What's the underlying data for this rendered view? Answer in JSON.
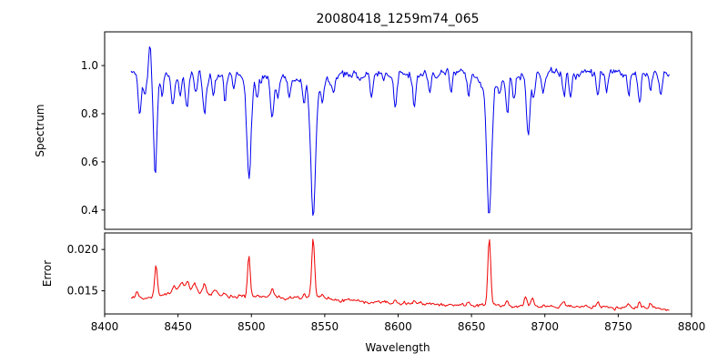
{
  "figure": {
    "title": "20080418_1259m74_065",
    "background": "#ffffff"
  },
  "chart_data": {
    "type": "line",
    "title": "20080418_1259m74_065",
    "xlabel": "Wavelength",
    "x_range": [
      8400,
      8800
    ],
    "x_ticks": [
      8400,
      8450,
      8500,
      8550,
      8600,
      8650,
      8700,
      8750,
      8800
    ],
    "data_x_start": 8418,
    "data_x_end": 8785,
    "step": 0.7,
    "noise_seed": 42,
    "grid": false,
    "legend": false,
    "panels": [
      {
        "name": "spectrum",
        "ylabel": "Spectrum",
        "color": "#0000ee",
        "line_width": 1,
        "y_ticks": [
          0.4,
          0.6,
          0.8,
          1.0
        ],
        "y_tick_labels": [
          "0.4",
          "0.6",
          "0.8",
          "1.0"
        ],
        "ylim": [
          0.32,
          1.14
        ],
        "noise_sigma": 0.011,
        "continuum_anchors": [
          [
            8418,
            0.97
          ],
          [
            8450,
            0.963
          ],
          [
            8490,
            0.97
          ],
          [
            8530,
            0.96
          ],
          [
            8570,
            0.963
          ],
          [
            8610,
            0.965
          ],
          [
            8650,
            0.975
          ],
          [
            8700,
            0.97
          ],
          [
            8750,
            0.975
          ],
          [
            8785,
            0.965
          ]
        ],
        "emission_spikes": [
          {
            "c": 8431.0,
            "h": 0.115,
            "w": 0.9
          }
        ],
        "absorption_lines": [
          {
            "c": 8424.0,
            "d": 0.15,
            "w": 1.1
          },
          {
            "c": 8427.5,
            "d": 0.08,
            "w": 0.9
          },
          {
            "c": 8434.5,
            "d": 0.42,
            "w": 1.2
          },
          {
            "c": 8439.0,
            "d": 0.1,
            "w": 0.9
          },
          {
            "c": 8446.5,
            "d": 0.13,
            "w": 1.1
          },
          {
            "c": 8451.5,
            "d": 0.08,
            "w": 0.9
          },
          {
            "c": 8456.0,
            "d": 0.12,
            "w": 1.1
          },
          {
            "c": 8462.0,
            "d": 0.09,
            "w": 0.9
          },
          {
            "c": 8468.0,
            "d": 0.16,
            "w": 1.3
          },
          {
            "c": 8474.0,
            "d": 0.08,
            "w": 0.9
          },
          {
            "c": 8482.0,
            "d": 0.1,
            "w": 0.9
          },
          {
            "c": 8488.0,
            "d": 0.07,
            "w": 0.9
          },
          {
            "c": 8498.3,
            "d": 0.38,
            "w": 1.4,
            "wd": 0.05,
            "ww": 5
          },
          {
            "c": 8504.0,
            "d": 0.07,
            "w": 0.9
          },
          {
            "c": 8514.2,
            "d": 0.17,
            "w": 1.2
          },
          {
            "c": 8518.0,
            "d": 0.09,
            "w": 0.9
          },
          {
            "c": 8526.0,
            "d": 0.08,
            "w": 0.9
          },
          {
            "c": 8536.0,
            "d": 0.09,
            "w": 0.9
          },
          {
            "c": 8542.1,
            "d": 0.5,
            "w": 1.6,
            "wd": 0.08,
            "ww": 6
          },
          {
            "c": 8548.5,
            "d": 0.08,
            "w": 0.9
          },
          {
            "c": 8556.0,
            "d": 0.06,
            "w": 0.9
          },
          {
            "c": 8582.0,
            "d": 0.09,
            "w": 1.0
          },
          {
            "c": 8598.0,
            "d": 0.12,
            "w": 1.1
          },
          {
            "c": 8611.0,
            "d": 0.13,
            "w": 1.1
          },
          {
            "c": 8621.5,
            "d": 0.09,
            "w": 1.0
          },
          {
            "c": 8636.0,
            "d": 0.06,
            "w": 0.9
          },
          {
            "c": 8648.0,
            "d": 0.09,
            "w": 0.9
          },
          {
            "c": 8662.1,
            "d": 0.52,
            "w": 1.6,
            "wd": 0.08,
            "ww": 6
          },
          {
            "c": 8669.0,
            "d": 0.09,
            "w": 0.9
          },
          {
            "c": 8674.5,
            "d": 0.16,
            "w": 1.0
          },
          {
            "c": 8679.0,
            "d": 0.12,
            "w": 0.9
          },
          {
            "c": 8688.6,
            "d": 0.25,
            "w": 1.2
          },
          {
            "c": 8692.5,
            "d": 0.1,
            "w": 0.9
          },
          {
            "c": 8699.0,
            "d": 0.07,
            "w": 0.9
          },
          {
            "c": 8713.0,
            "d": 0.1,
            "w": 0.9
          },
          {
            "c": 8717.5,
            "d": 0.08,
            "w": 0.9
          },
          {
            "c": 8736.0,
            "d": 0.11,
            "w": 1.0
          },
          {
            "c": 8742.0,
            "d": 0.07,
            "w": 0.9
          },
          {
            "c": 8757.0,
            "d": 0.09,
            "w": 0.9
          },
          {
            "c": 8764.5,
            "d": 0.13,
            "w": 1.0
          },
          {
            "c": 8772.0,
            "d": 0.09,
            "w": 0.9
          },
          {
            "c": 8779.0,
            "d": 0.07,
            "w": 0.9
          }
        ]
      },
      {
        "name": "error",
        "ylabel": "Error",
        "color": "#ee0000",
        "line_width": 1,
        "y_ticks": [
          0.015,
          0.02
        ],
        "y_tick_labels": [
          "0.015",
          "0.020"
        ],
        "ylim": [
          0.0122,
          0.022
        ],
        "noise_sigma": 0.00012,
        "baseline_anchors": [
          [
            8418,
            0.0141
          ],
          [
            8435,
            0.0143
          ],
          [
            8448,
            0.0148
          ],
          [
            8455,
            0.015
          ],
          [
            8463,
            0.0149
          ],
          [
            8470,
            0.0147
          ],
          [
            8480,
            0.0144
          ],
          [
            8495,
            0.0143
          ],
          [
            8510,
            0.0143
          ],
          [
            8530,
            0.0142
          ],
          [
            8545,
            0.0141
          ],
          [
            8560,
            0.0139
          ],
          [
            8580,
            0.0137
          ],
          [
            8600,
            0.0135
          ],
          [
            8620,
            0.0134
          ],
          [
            8645,
            0.0133
          ],
          [
            8665,
            0.0132
          ],
          [
            8690,
            0.0131
          ],
          [
            8715,
            0.0131
          ],
          [
            8740,
            0.013
          ],
          [
            8760,
            0.013
          ],
          [
            8775,
            0.0129
          ],
          [
            8785,
            0.0127
          ]
        ],
        "spikes": [
          {
            "c": 8422.0,
            "h": 0.0007,
            "w": 0.8
          },
          {
            "c": 8435.0,
            "h": 0.0037,
            "w": 0.9
          },
          {
            "c": 8447.0,
            "h": 0.0008,
            "w": 0.9
          },
          {
            "c": 8452.0,
            "h": 0.0009,
            "w": 2.0
          },
          {
            "c": 8456.5,
            "h": 0.001,
            "w": 1.2
          },
          {
            "c": 8461.0,
            "h": 0.0008,
            "w": 1.5
          },
          {
            "c": 8468.0,
            "h": 0.0011,
            "w": 1.2
          },
          {
            "c": 8475.0,
            "h": 0.0005,
            "w": 1.2
          },
          {
            "c": 8482.0,
            "h": 0.0004,
            "w": 1.0
          },
          {
            "c": 8498.3,
            "h": 0.005,
            "w": 0.9
          },
          {
            "c": 8514.2,
            "h": 0.0008,
            "w": 1.0
          },
          {
            "c": 8536.0,
            "h": 0.0004,
            "w": 0.9
          },
          {
            "c": 8542.1,
            "h": 0.007,
            "w": 1.0
          },
          {
            "c": 8548.5,
            "h": 0.0005,
            "w": 0.9
          },
          {
            "c": 8598.0,
            "h": 0.0004,
            "w": 0.9
          },
          {
            "c": 8611.0,
            "h": 0.0004,
            "w": 0.9
          },
          {
            "c": 8648.0,
            "h": 0.0003,
            "w": 0.9
          },
          {
            "c": 8662.1,
            "h": 0.008,
            "w": 1.0
          },
          {
            "c": 8674.5,
            "h": 0.0005,
            "w": 0.9
          },
          {
            "c": 8687.0,
            "h": 0.0013,
            "w": 0.9
          },
          {
            "c": 8691.5,
            "h": 0.0009,
            "w": 0.8
          },
          {
            "c": 8713.0,
            "h": 0.0004,
            "w": 0.8
          },
          {
            "c": 8736.0,
            "h": 0.0007,
            "w": 0.8
          },
          {
            "c": 8757.0,
            "h": 0.0004,
            "w": 0.8
          },
          {
            "c": 8764.5,
            "h": 0.0007,
            "w": 0.8
          },
          {
            "c": 8772.0,
            "h": 0.0005,
            "w": 0.8
          }
        ]
      }
    ]
  }
}
